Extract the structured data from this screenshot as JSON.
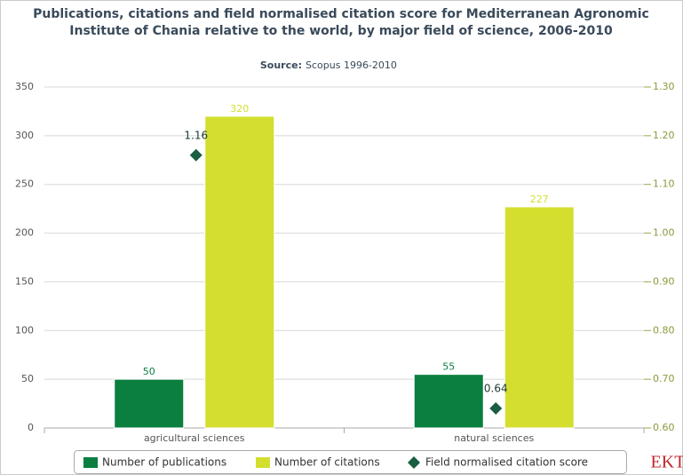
{
  "chart_data": {
    "type": "bar",
    "title": "Publications, citations and field normalised citation score for Mediterranean Agronomic",
    "title_line2": "Institute of Chania relative to the world, by major field of science, 2006-2010",
    "subtitle_label": "Source:",
    "subtitle": "Scopus 1996-2010",
    "categories": [
      "agricultural sciences",
      "natural sciences"
    ],
    "series": [
      {
        "name": "Number of publications",
        "color": "#0a7f3f",
        "values": [
          50,
          55
        ]
      },
      {
        "name": "Number of citations",
        "color": "#d4de2f",
        "values": [
          320,
          227
        ]
      },
      {
        "name": "Field normalised citation score",
        "color": "#1a5e40",
        "values": [
          1.16,
          0.64
        ],
        "axis": "y2",
        "type": "scatter"
      }
    ],
    "ylim": [
      0,
      350
    ],
    "yticks": [
      0,
      50,
      100,
      150,
      200,
      250,
      300,
      350
    ],
    "y2lim": [
      0.6,
      1.3
    ],
    "y2ticks": [
      {
        "value": 0.6,
        "label": "0.60"
      },
      {
        "value": 0.7,
        "label": "0.70"
      },
      {
        "value": 0.8,
        "label": "0.80"
      },
      {
        "value": 0.9,
        "label": "0.90"
      },
      {
        "value": 1.0,
        "label": "1.00"
      },
      {
        "value": 1.1,
        "label": "1.10"
      },
      {
        "value": 1.2,
        "label": "1.20"
      },
      {
        "value": 1.3,
        "label": "1.30"
      }
    ],
    "grid": true,
    "legend": "bottom",
    "logo": "EKT"
  }
}
